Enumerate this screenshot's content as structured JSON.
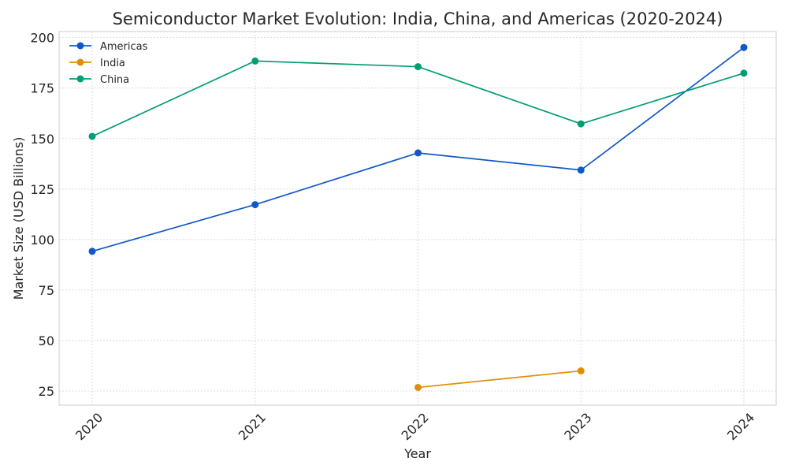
{
  "chart_data": {
    "type": "line",
    "title": "Semiconductor Market Evolution: India, China, and Americas (2020-2024)",
    "xlabel": "Year",
    "ylabel": "Market Size (USD Billions)",
    "categories": [
      "2020",
      "2021",
      "2022",
      "2023",
      "2024"
    ],
    "ylim": [
      18,
      203
    ],
    "yticks": [
      25,
      50,
      75,
      100,
      125,
      150,
      175,
      200
    ],
    "grid": true,
    "legend_position": "top-left",
    "series": [
      {
        "name": "Americas",
        "color": "#1158c7",
        "values": [
          94.2,
          117.3,
          142.9,
          134.4,
          195.1
        ]
      },
      {
        "name": "India",
        "color": "#de8f05",
        "values": [
          null,
          null,
          26.8,
          35.0,
          null
        ]
      },
      {
        "name": "China",
        "color": "#029e73",
        "values": [
          151.1,
          188.4,
          185.6,
          157.3,
          182.4
        ]
      }
    ]
  }
}
